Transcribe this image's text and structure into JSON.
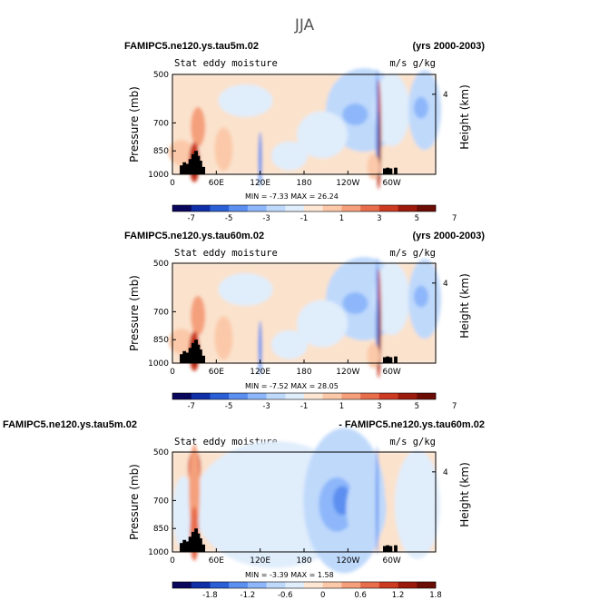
{
  "page": {
    "title": "JJA"
  },
  "colors": {
    "ocean_bg": "#fbe2cc",
    "topography": "#000000",
    "scale_small": [
      "#08075c",
      "#0f2fa8",
      "#2a5fd6",
      "#5b8ff0",
      "#8db7fa",
      "#bfd9fb",
      "#e0edfb",
      "#fde6d3",
      "#fbc9a9",
      "#f5a07b",
      "#e86d4b",
      "#cc3a22",
      "#9c1a0c",
      "#6b0c05"
    ],
    "scale_diff": [
      "#08075c",
      "#0f2fa8",
      "#2a5fd6",
      "#5b8ff0",
      "#8db7fa",
      "#bfd9fb",
      "#e0edfb",
      "#fde6d3",
      "#fbc9a9",
      "#f5a07b",
      "#e86d4b",
      "#cc3a22",
      "#9c1a0c",
      "#6b0c05"
    ]
  },
  "panels": [
    {
      "case_title": "FAMIPC5.ne120.ys.tau5m.02",
      "right_title": "(yrs 2000-2003)",
      "variable_label": "Stat eddy moisture",
      "units_label": "m/s g/kg",
      "min_max_label": "MIN =   -7.33   MAX =   26.24",
      "colorbar_labels": [
        "-7",
        "-5",
        "-3",
        "-1",
        "1",
        "3",
        "5",
        "7"
      ],
      "chart_data": {
        "type": "heatmap",
        "title": "FAMIPC5.ne120.ys.tau5m.02",
        "xlabel": "",
        "ylabel": "Pressure (mb)",
        "y2label": "Height (km)",
        "x_ticks": [
          "0",
          "60E",
          "120E",
          "180",
          "120W",
          "60W"
        ],
        "x_tick_values": [
          0,
          60,
          120,
          180,
          240,
          300
        ],
        "xlim": [
          0,
          360
        ],
        "y_ticks": [
          "500",
          "700",
          "850",
          "1000"
        ],
        "y_tick_values": [
          500,
          700,
          850,
          1000
        ],
        "ylim": [
          1000,
          500
        ],
        "y2_ticks": [
          "4"
        ],
        "y2_tick_values": [
          4
        ],
        "min": -7.33,
        "max": 26.24,
        "colorbar_levels": [
          -7,
          -6,
          -5,
          -4,
          -3,
          -2,
          -1,
          0,
          1,
          2,
          3,
          4,
          5,
          6,
          7
        ]
      }
    },
    {
      "case_title": "FAMIPC5.ne120.ys.tau60m.02",
      "right_title": "(yrs 2000-2003)",
      "variable_label": "Stat eddy moisture",
      "units_label": "m/s g/kg",
      "min_max_label": "MIN =   -7.52   MAX =   28.05",
      "colorbar_labels": [
        "-7",
        "-5",
        "-3",
        "-1",
        "1",
        "3",
        "5",
        "7"
      ],
      "chart_data": {
        "type": "heatmap",
        "title": "FAMIPC5.ne120.ys.tau60m.02",
        "xlabel": "",
        "ylabel": "Pressure (mb)",
        "y2label": "Height (km)",
        "x_ticks": [
          "0",
          "60E",
          "120E",
          "180",
          "120W",
          "60W"
        ],
        "x_tick_values": [
          0,
          60,
          120,
          180,
          240,
          300
        ],
        "xlim": [
          0,
          360
        ],
        "y_ticks": [
          "500",
          "700",
          "850",
          "1000"
        ],
        "y_tick_values": [
          500,
          700,
          850,
          1000
        ],
        "ylim": [
          1000,
          500
        ],
        "y2_ticks": [
          "4"
        ],
        "y2_tick_values": [
          4
        ],
        "min": -7.52,
        "max": 28.05,
        "colorbar_levels": [
          -7,
          -6,
          -5,
          -4,
          -3,
          -2,
          -1,
          0,
          1,
          2,
          3,
          4,
          5,
          6,
          7
        ]
      }
    },
    {
      "case_title": "FAMIPC5.ne120.ys.tau5m.02",
      "right_title": "- FAMIPC5.ne120.ys.tau60m.02",
      "variable_label": "Stat eddy moisture",
      "units_label": "m/s g/kg",
      "min_max_label": "MIN =   -3.39   MAX =   1.58",
      "colorbar_labels": [
        "-1.8",
        "-1.2",
        "-0.6",
        "0",
        "0.6",
        "1.2",
        "1.8"
      ],
      "chart_data": {
        "type": "heatmap",
        "title": "FAMIPC5.ne120.ys.tau5m.02 - FAMIPC5.ne120.ys.tau60m.02",
        "xlabel": "",
        "ylabel": "Pressure (mb)",
        "y2label": "Height (km)",
        "x_ticks": [
          "0",
          "60E",
          "120E",
          "180",
          "120W",
          "60W"
        ],
        "x_tick_values": [
          0,
          60,
          120,
          180,
          240,
          300
        ],
        "xlim": [
          0,
          360
        ],
        "y_ticks": [
          "500",
          "700",
          "850",
          "1000"
        ],
        "y_tick_values": [
          500,
          700,
          850,
          1000
        ],
        "ylim": [
          1000,
          500
        ],
        "y2_ticks": [
          "4"
        ],
        "y2_tick_values": [
          4
        ],
        "min": -3.39,
        "max": 1.58,
        "colorbar_levels": [
          -2.1,
          -1.8,
          -1.5,
          -1.2,
          -0.9,
          -0.6,
          -0.3,
          0,
          0.3,
          0.6,
          0.9,
          1.2,
          1.5,
          1.8,
          2.1
        ]
      }
    }
  ]
}
